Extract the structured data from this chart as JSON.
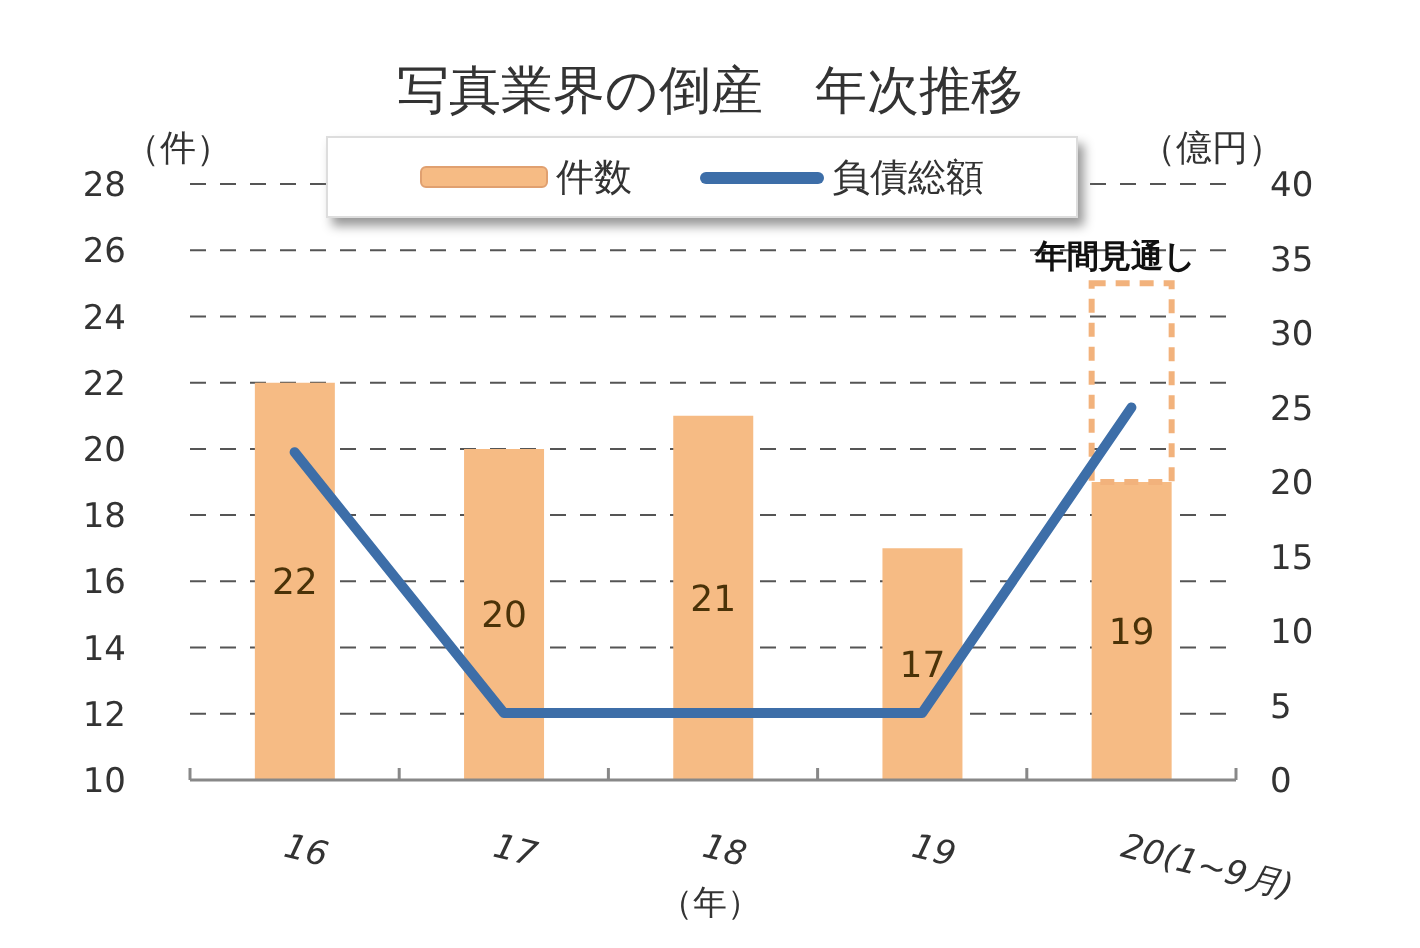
{
  "chart_data": {
    "type": "bar",
    "title": "写真業界の倒産　年次推移",
    "xlabel": "（年）",
    "ylabel": "（件）",
    "y2label": "（億円）",
    "categories": [
      "16",
      "17",
      "18",
      "19",
      "20(1~9月)"
    ],
    "series": [
      {
        "name": "件数",
        "color": "#f6bb84",
        "values": [
          22,
          20,
          21,
          17,
          19
        ],
        "value_labels": [
          "22",
          "20",
          "21",
          "17",
          "19"
        ]
      },
      {
        "color": "#f2b27c",
        "line_style": "dashed",
        "base": [
          null,
          null,
          null,
          null,
          19
        ],
        "values": [
          null,
          null,
          null,
          null,
          6
        ]
      },
      {
        "name": "負債総額",
        "type": "line",
        "axis": "y2",
        "color": "#3d6ea8",
        "values": [
          22,
          4.5,
          4.5,
          4.5,
          25
        ]
      }
    ],
    "ylim": [
      10,
      28
    ],
    "yticks": [
      10,
      12,
      14,
      16,
      18,
      20,
      22,
      24,
      26,
      28
    ],
    "y2lim": [
      0,
      40
    ],
    "y2ticks": [
      0,
      5,
      10,
      15,
      20,
      25,
      30,
      35,
      40
    ],
    "grid": "y",
    "legend": "top",
    "marker": "none",
    "annotations": [
      {
        "text": "年間見通し",
        "x": "20(1~9月)",
        "y": 25
      }
    ]
  }
}
